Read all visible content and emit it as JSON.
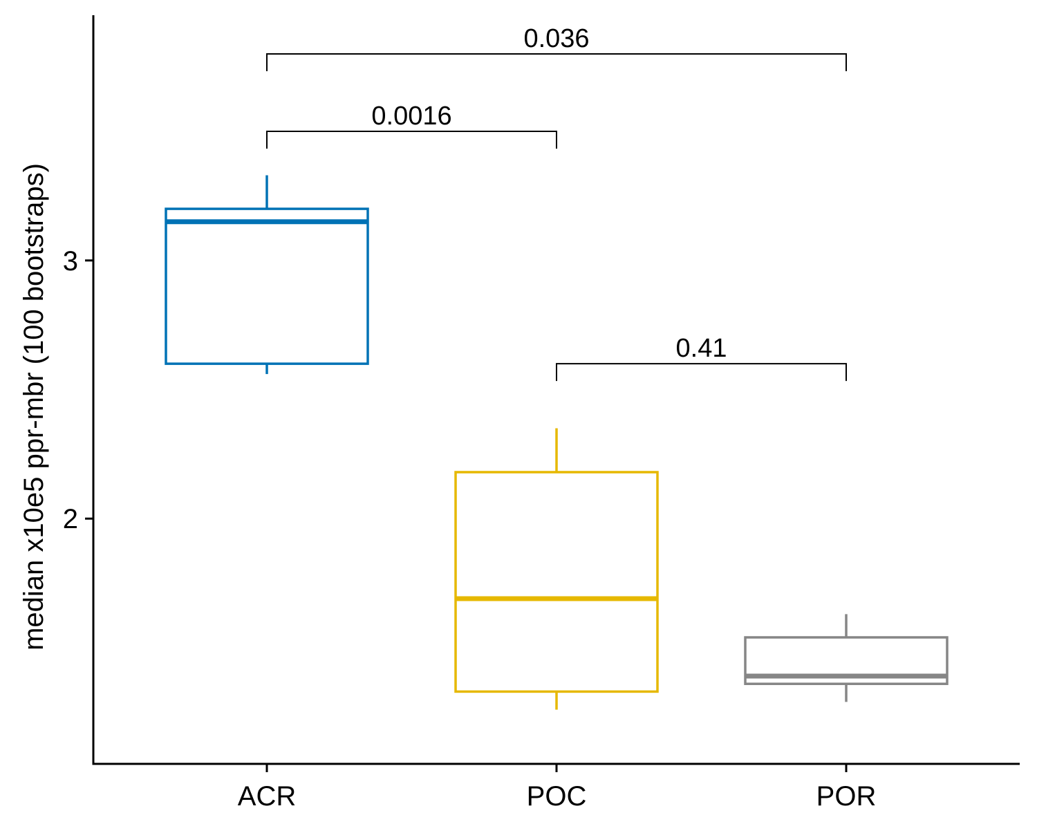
{
  "chart_data": {
    "type": "boxplot",
    "title": "",
    "xlabel": "",
    "ylabel": "median x10e5 ppr-mbr (100 bootstraps)",
    "ylim": [
      1.05,
      3.95
    ],
    "yticks": [
      2,
      3
    ],
    "grid": false,
    "legend": "none",
    "categories": [
      "ACR",
      "POC",
      "POR"
    ],
    "boxes": [
      {
        "category": "ACR",
        "color": "#0072B5",
        "whisker_low": 2.56,
        "q1": 2.6,
        "median": 3.15,
        "q3": 3.2,
        "whisker_high": 3.33
      },
      {
        "category": "POC",
        "color": "#E6B800",
        "whisker_low": 1.26,
        "q1": 1.33,
        "median": 1.69,
        "q3": 2.18,
        "whisker_high": 2.35
      },
      {
        "category": "POR",
        "color": "#868686",
        "whisker_low": 1.29,
        "q1": 1.36,
        "median": 1.39,
        "q3": 1.54,
        "whisker_high": 1.63
      }
    ],
    "comparisons": [
      {
        "from": "ACR",
        "to": "POR",
        "label": "0.036",
        "y": 3.8
      },
      {
        "from": "ACR",
        "to": "POC",
        "label": "0.0016",
        "y": 3.5
      },
      {
        "from": "POC",
        "to": "POR",
        "label": "0.41",
        "y": 2.6
      }
    ]
  }
}
